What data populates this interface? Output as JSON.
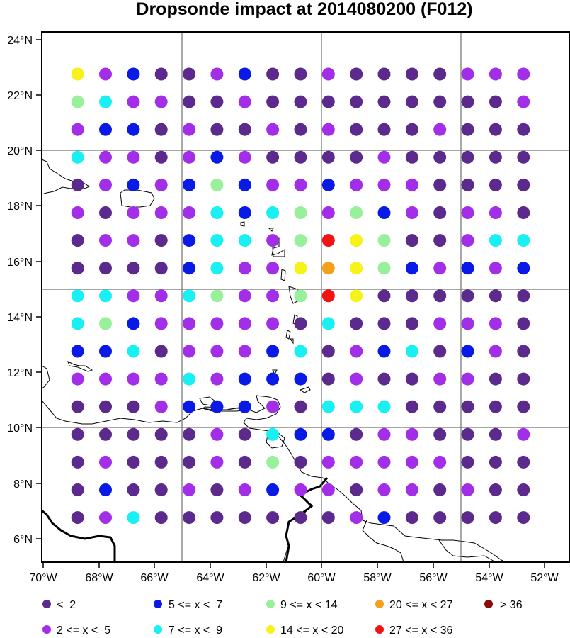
{
  "title": "Dropsonde impact at 2014080200 (F012)",
  "chart_data": {
    "type": "map-dot-grid",
    "title": "Dropsonde impact at 2014080200 (F012)",
    "x_range_deg_lon": [
      -70.2,
      -51.3
    ],
    "y_range_deg_lat": [
      5.2,
      24.3
    ],
    "x_ticks": [
      "70°W",
      "68°W",
      "66°W",
      "64°W",
      "62°W",
      "60°W",
      "58°W",
      "56°W",
      "54°W",
      "52°W"
    ],
    "y_ticks": [
      "6°N",
      "8°N",
      "10°N",
      "12°N",
      "14°N",
      "16°N",
      "18°N",
      "20°N",
      "22°N",
      "24°N"
    ],
    "grid_lines_lon": [
      -65,
      -60,
      -55
    ],
    "grid_lines_lat": [
      10,
      15,
      20
    ],
    "lons": [
      -68.75,
      -67.75,
      -66.75,
      -65.75,
      -64.75,
      -63.75,
      -62.75,
      -61.75,
      -60.75,
      -59.75,
      -58.75,
      -57.75,
      -56.75,
      -55.75,
      -54.75,
      -53.75,
      -52.75
    ],
    "lats": [
      22.75,
      21.75,
      20.75,
      19.75,
      18.75,
      17.75,
      16.75,
      15.75,
      14.75,
      13.75,
      12.75,
      11.75,
      10.75,
      9.75,
      8.75,
      7.75,
      6.75
    ],
    "categories": [
      {
        "label": "<  2",
        "color": "#5b2a8c"
      },
      {
        "label": "2 <= x <  5",
        "color": "#a32ee8"
      },
      {
        "label": "5 <= x <  7",
        "color": "#0a1ae6"
      },
      {
        "label": "7 <= x <  9",
        "color": "#19f0f4"
      },
      {
        "label": "9 <= x < 14",
        "color": "#98f09a"
      },
      {
        "label": "14 <= x < 20",
        "color": "#f6f21a"
      },
      {
        "label": "20 <= x < 27",
        "color": "#f5a01a"
      },
      {
        "label": "27 <= x < 36",
        "color": "#f01414"
      },
      {
        "label": "> 36",
        "color": "#8b0a0a"
      }
    ],
    "category_index_grid": [
      [
        5,
        1,
        2,
        0,
        0,
        1,
        2,
        0,
        0,
        1,
        0,
        0,
        0,
        0,
        1,
        1,
        1
      ],
      [
        4,
        3,
        1,
        1,
        0,
        0,
        1,
        0,
        0,
        0,
        0,
        0,
        0,
        0,
        0,
        0,
        1
      ],
      [
        1,
        2,
        2,
        0,
        1,
        0,
        0,
        1,
        0,
        1,
        0,
        0,
        0,
        1,
        0,
        0,
        0
      ],
      [
        3,
        1,
        1,
        0,
        1,
        2,
        1,
        0,
        0,
        0,
        0,
        1,
        0,
        0,
        0,
        0,
        0
      ],
      [
        0,
        1,
        2,
        1,
        2,
        4,
        2,
        1,
        1,
        2,
        1,
        1,
        1,
        0,
        0,
        0,
        0
      ],
      [
        1,
        0,
        1,
        1,
        1,
        3,
        2,
        3,
        4,
        1,
        4,
        2,
        1,
        0,
        1,
        1,
        0
      ],
      [
        0,
        1,
        1,
        0,
        2,
        3,
        3,
        1,
        4,
        7,
        5,
        4,
        0,
        0,
        1,
        3,
        3
      ],
      [
        0,
        0,
        0,
        0,
        2,
        3,
        1,
        1,
        5,
        6,
        5,
        4,
        2,
        1,
        2,
        1,
        2
      ],
      [
        3,
        3,
        1,
        1,
        3,
        4,
        1,
        1,
        4,
        7,
        5,
        0,
        0,
        0,
        0,
        0,
        0
      ],
      [
        3,
        4,
        2,
        1,
        1,
        1,
        1,
        1,
        0,
        3,
        0,
        0,
        0,
        1,
        1,
        1,
        0
      ],
      [
        2,
        2,
        3,
        0,
        1,
        1,
        1,
        2,
        3,
        0,
        1,
        2,
        3,
        0,
        2,
        1,
        0
      ],
      [
        1,
        1,
        1,
        1,
        3,
        1,
        2,
        2,
        2,
        0,
        1,
        0,
        0,
        1,
        1,
        0,
        0
      ],
      [
        0,
        0,
        0,
        1,
        2,
        2,
        2,
        1,
        0,
        3,
        3,
        3,
        0,
        0,
        0,
        0,
        0
      ],
      [
        0,
        0,
        0,
        0,
        0,
        1,
        0,
        3,
        2,
        2,
        0,
        1,
        1,
        0,
        0,
        0,
        1
      ],
      [
        0,
        1,
        0,
        0,
        0,
        1,
        0,
        4,
        0,
        1,
        1,
        1,
        1,
        1,
        0,
        0,
        0
      ],
      [
        0,
        2,
        0,
        0,
        1,
        0,
        1,
        2,
        1,
        1,
        0,
        1,
        1,
        0,
        1,
        0,
        0
      ],
      [
        0,
        1,
        3,
        0,
        0,
        0,
        0,
        0,
        0,
        0,
        1,
        2,
        0,
        0,
        0,
        0,
        0
      ]
    ]
  }
}
